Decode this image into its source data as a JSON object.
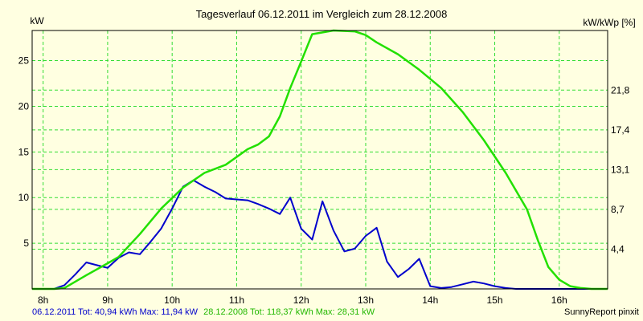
{
  "chart_data": {
    "type": "line",
    "title": "Tagesverlauf 06.12.2011 im Vergleich zum 28.12.2008",
    "left_unit": "kW",
    "right_unit": "kW/kWp [%]",
    "x_tick_labels": [
      "8h",
      "9h",
      "10h",
      "11h",
      "12h",
      "13h",
      "14h",
      "15h",
      "16h"
    ],
    "x_range": [
      7.83,
      16.75
    ],
    "y_ticks": [
      5,
      10,
      15,
      20,
      25
    ],
    "y_range": [
      0,
      28.3
    ],
    "right_ticks": [
      "4,4",
      "8,7",
      "13,1",
      "17,4",
      "21,8"
    ],
    "grid": true,
    "series": [
      {
        "name": "06.12.2011",
        "color": "#0000cc",
        "x": [
          7.83,
          8.17,
          8.33,
          8.5,
          8.67,
          8.83,
          9.0,
          9.17,
          9.33,
          9.5,
          9.67,
          9.83,
          10.0,
          10.17,
          10.33,
          10.5,
          10.67,
          10.83,
          11.0,
          11.17,
          11.33,
          11.5,
          11.67,
          11.83,
          12.0,
          12.17,
          12.33,
          12.5,
          12.67,
          12.83,
          13.0,
          13.17,
          13.33,
          13.5,
          13.67,
          13.83,
          14.0,
          14.17,
          14.33,
          14.5,
          14.67,
          14.83,
          15.0,
          15.17,
          15.33,
          15.5,
          15.67,
          15.83,
          16.0,
          16.17,
          16.33,
          16.5,
          16.67,
          16.75
        ],
        "y": [
          0,
          0,
          0.4,
          1.6,
          2.9,
          2.6,
          2.3,
          3.4,
          4.0,
          3.8,
          5.2,
          6.6,
          8.8,
          11.2,
          11.9,
          11.2,
          10.6,
          9.9,
          9.8,
          9.7,
          9.3,
          8.8,
          8.2,
          10.0,
          6.6,
          5.4,
          9.6,
          6.4,
          4.1,
          4.4,
          5.8,
          6.7,
          3.0,
          1.3,
          2.2,
          3.3,
          0.3,
          0.1,
          0.2,
          0.5,
          0.8,
          0.6,
          0.3,
          0.1,
          0.0,
          0.0,
          0.0,
          0.0,
          0.0,
          0.0,
          0.0,
          0.0,
          0.0,
          0.0
        ]
      },
      {
        "name": "28.12.2008",
        "color": "#22e000",
        "x": [
          7.83,
          8.17,
          8.33,
          8.67,
          9.0,
          9.17,
          9.5,
          9.83,
          10.17,
          10.5,
          10.83,
          11.17,
          11.33,
          11.5,
          11.67,
          11.83,
          12.0,
          12.17,
          12.5,
          12.83,
          13.0,
          13.17,
          13.5,
          13.83,
          14.17,
          14.5,
          14.83,
          15.17,
          15.5,
          15.67,
          15.83,
          16.0,
          16.17,
          16.33,
          16.5,
          16.75
        ],
        "y": [
          0,
          0,
          0.1,
          1.5,
          2.8,
          3.5,
          6.0,
          8.8,
          11.1,
          12.7,
          13.6,
          15.3,
          15.8,
          16.7,
          18.9,
          22.0,
          24.9,
          27.9,
          28.3,
          28.2,
          27.8,
          27.0,
          25.7,
          24.0,
          22.0,
          19.4,
          16.3,
          12.7,
          8.7,
          5.3,
          2.4,
          1.0,
          0.3,
          0.1,
          0,
          0
        ]
      }
    ]
  },
  "footer": {
    "series1_caption": "06.12.2011 Tot: 40,94 kWh Max: 11,94 kW",
    "series2_caption": "28.12.2008 Tot: 118,37 kWh Max: 28,31 kW",
    "brand": "SunnyReport pinxit"
  }
}
